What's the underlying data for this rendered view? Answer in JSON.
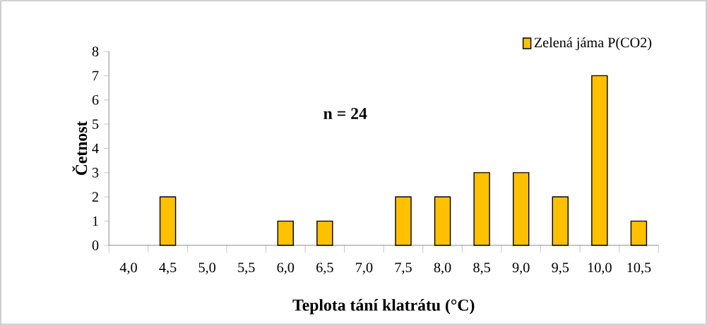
{
  "chart_data": {
    "type": "bar",
    "xlabel": "Teplota tání klatrátu (°C)",
    "ylabel": "Četnost",
    "categories": [
      "4,0",
      "4,5",
      "5,0",
      "5,5",
      "6,0",
      "6,5",
      "7,0",
      "7,5",
      "8,0",
      "8,5",
      "9,0",
      "9,5",
      "10,0",
      "10,5"
    ],
    "series": [
      {
        "name": "Zelená jáma P(CO2)",
        "color": "#ffc000",
        "values": [
          0,
          2,
          0,
          0,
          1,
          1,
          0,
          2,
          2,
          3,
          3,
          2,
          7,
          1
        ]
      }
    ],
    "ylim": [
      0,
      8
    ],
    "yticks": [
      0,
      1,
      2,
      3,
      4,
      5,
      6,
      7,
      8
    ],
    "annotations": [
      "n = 24"
    ],
    "legend": "top right",
    "grid": false
  }
}
